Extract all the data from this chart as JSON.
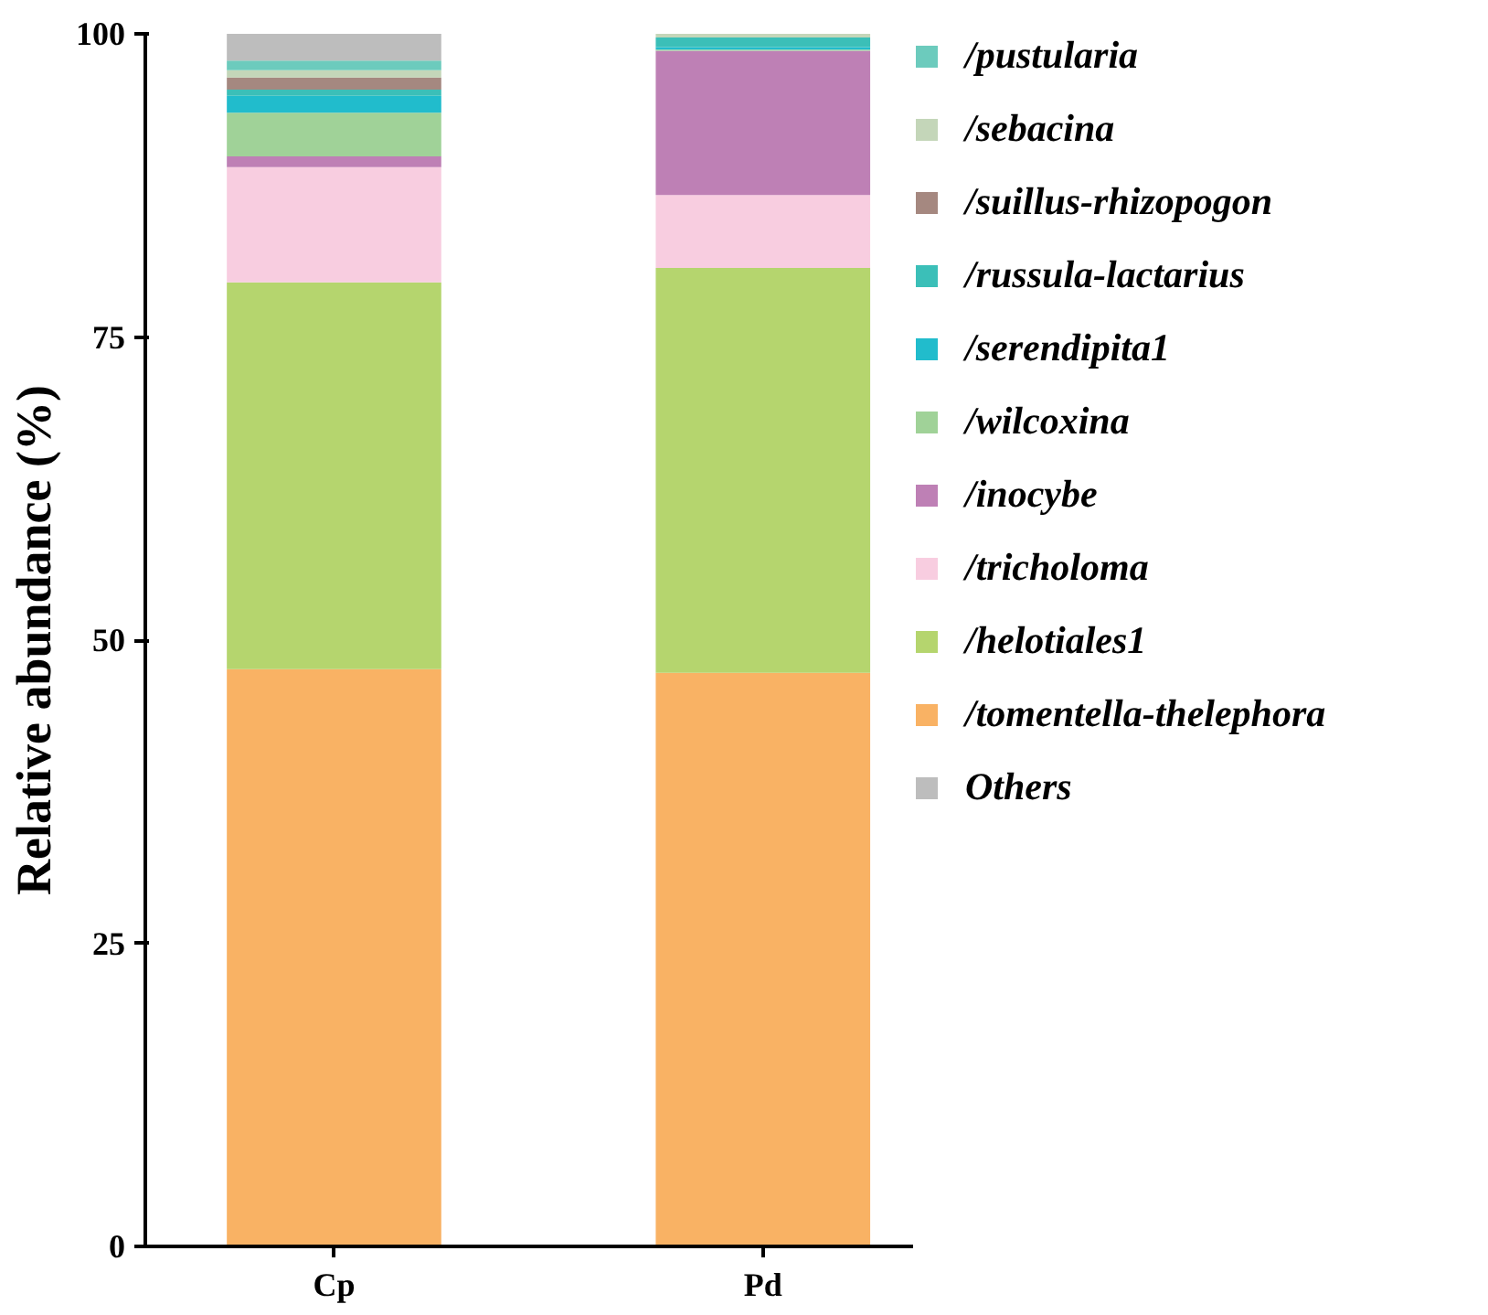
{
  "chart_data": {
    "type": "bar",
    "stacked": true,
    "ylabel": "Relative abundance (%)",
    "categories": [
      "Cp",
      "Pd"
    ],
    "ylim": [
      0,
      100
    ],
    "yticks": [
      0,
      25,
      50,
      75,
      100
    ],
    "grid": false,
    "legend": "right",
    "series": [
      {
        "name": "/tomentella-thelephora",
        "color": "#f9b264",
        "values": [
          47.6,
          47.3
        ]
      },
      {
        "name": "/helotiales1",
        "color": "#b5d56e",
        "values": [
          31.9,
          33.4
        ]
      },
      {
        "name": "/tricholoma",
        "color": "#f8cde0",
        "values": [
          9.5,
          6.0
        ]
      },
      {
        "name": "/inocybe",
        "color": "#be80b5",
        "values": [
          0.9,
          11.9
        ]
      },
      {
        "name": "/wilcoxina",
        "color": "#a0d298",
        "values": [
          3.6,
          0.1
        ]
      },
      {
        "name": "/serendipita1",
        "color": "#21bccc",
        "values": [
          1.4,
          0.2
        ]
      },
      {
        "name": "/russula-lactarius",
        "color": "#3bbfb8",
        "values": [
          0.5,
          0.8
        ]
      },
      {
        "name": "/suillus-rhizopogon",
        "color": "#a58880",
        "values": [
          1.0,
          0
        ]
      },
      {
        "name": "/sebacina",
        "color": "#c4d6b9",
        "values": [
          0.6,
          0.4
        ]
      },
      {
        "name": "/pustularia",
        "color": "#6ccbbd",
        "values": [
          0.8,
          0
        ]
      },
      {
        "name": "Others",
        "color": "#bdbdbd",
        "values": [
          2.2,
          null
        ]
      }
    ]
  }
}
